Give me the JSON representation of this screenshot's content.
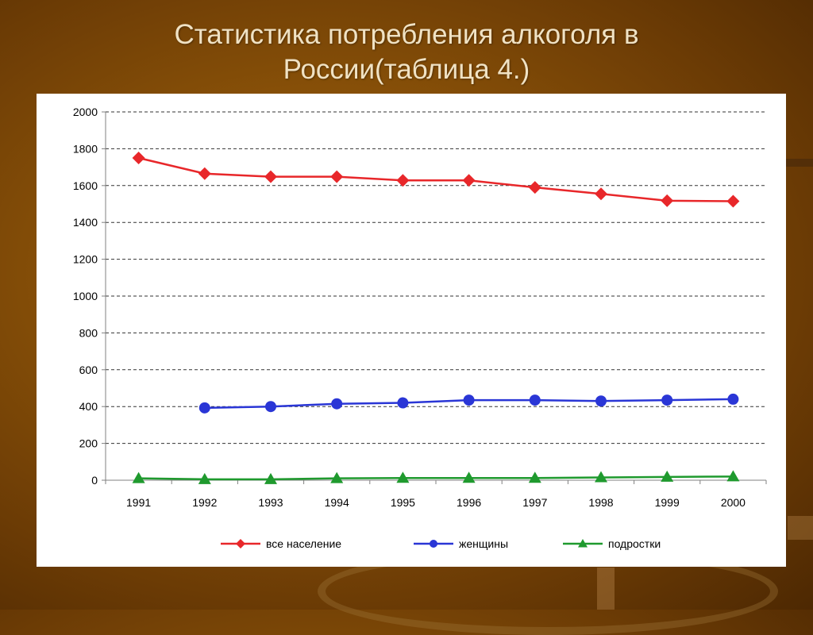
{
  "slide": {
    "title_line1": "Статистика потребления алкоголя в",
    "title_line2": "России(таблица 4.)"
  },
  "chart_data": {
    "type": "line",
    "categories": [
      "1991",
      "1992",
      "1993",
      "1994",
      "1995",
      "1996",
      "1997",
      "1998",
      "1999",
      "2000"
    ],
    "y_ticks": [
      0,
      200,
      400,
      600,
      800,
      1000,
      1200,
      1400,
      1600,
      1800,
      2000
    ],
    "ylim": [
      0,
      2000
    ],
    "grid": "horizontal dashed",
    "legend_position": "bottom",
    "series": [
      {
        "name": "все население",
        "color": "#e8272a",
        "marker": "diamond",
        "values": [
          1750,
          1665,
          1648,
          1648,
          1628,
          1628,
          1590,
          1555,
          1518,
          1515
        ]
      },
      {
        "name": "женщины",
        "color": "#2a36d6",
        "marker": "circle",
        "values": [
          null,
          393,
          400,
          415,
          420,
          435,
          435,
          430,
          435,
          440
        ]
      },
      {
        "name": "подростки",
        "color": "#1f9a2e",
        "marker": "triangle",
        "values": [
          10,
          5,
          5,
          10,
          12,
          12,
          12,
          15,
          18,
          20
        ]
      }
    ]
  }
}
